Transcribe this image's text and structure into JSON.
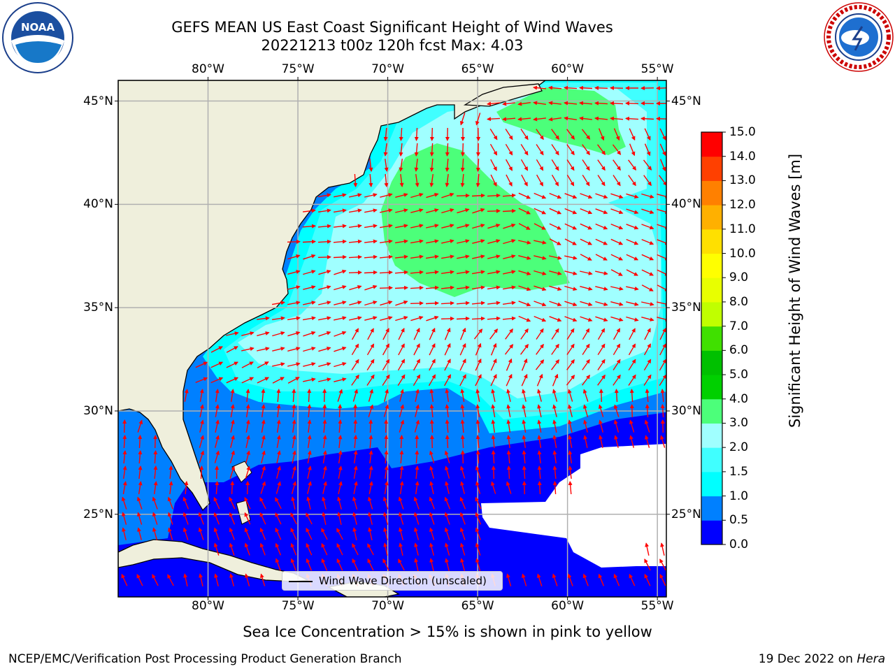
{
  "header": {
    "title_line1": "GEFS MEAN US East Coast Significant Height of Wind Waves",
    "title_line2": "20221213 t00z 120h fcst   Max: 4.03"
  },
  "logos": {
    "noaa": {
      "text": "NOAA",
      "icon": "noaa-logo-icon"
    },
    "nws": {
      "icon": "nws-logo-icon"
    }
  },
  "map": {
    "lon_labels": [
      "80°W",
      "75°W",
      "70°W",
      "65°W",
      "60°W",
      "55°W"
    ],
    "lat_labels": [
      "45°N",
      "40°N",
      "35°N",
      "30°N",
      "25°N"
    ],
    "lon_values": [
      -80,
      -75,
      -70,
      -65,
      -60,
      -55
    ],
    "lat_values": [
      45,
      40,
      35,
      30,
      25
    ],
    "lon_range": [
      -85,
      -54.5
    ],
    "lat_range": [
      21,
      46
    ],
    "colors": {
      "land": "#efefdc",
      "arrow": "#ff0000",
      "grid": "#b0b0b0"
    }
  },
  "legend": {
    "label": "Wind Wave Direction (unscaled)"
  },
  "colorbar": {
    "title": "Significant Height of Wind Waves [m]",
    "levels": [
      "0.0",
      "0.5",
      "1.0",
      "1.5",
      "2.0",
      "3.0",
      "4.0",
      "5.0",
      "6.0",
      "7.0",
      "8.0",
      "9.0",
      "10.0",
      "11.0",
      "12.0",
      "13.0",
      "14.0",
      "15.0"
    ],
    "colors": [
      "#0000ff",
      "#0080ff",
      "#00ffff",
      "#40ffff",
      "#a0ffff",
      "#4cff7a",
      "#00d000",
      "#00c000",
      "#40e000",
      "#c0ff00",
      "#e8ff00",
      "#ffff00",
      "#ffe000",
      "#ffb000",
      "#ff8000",
      "#ff4000",
      "#ff0000"
    ]
  },
  "footer": {
    "note": "Sea Ice Concentration > 15% is shown in pink to yellow",
    "left": "NCEP/EMC/Verification Post Processing Product Generation Branch",
    "right_prefix": "19 Dec 2022 on ",
    "right_host": "Hera"
  }
}
